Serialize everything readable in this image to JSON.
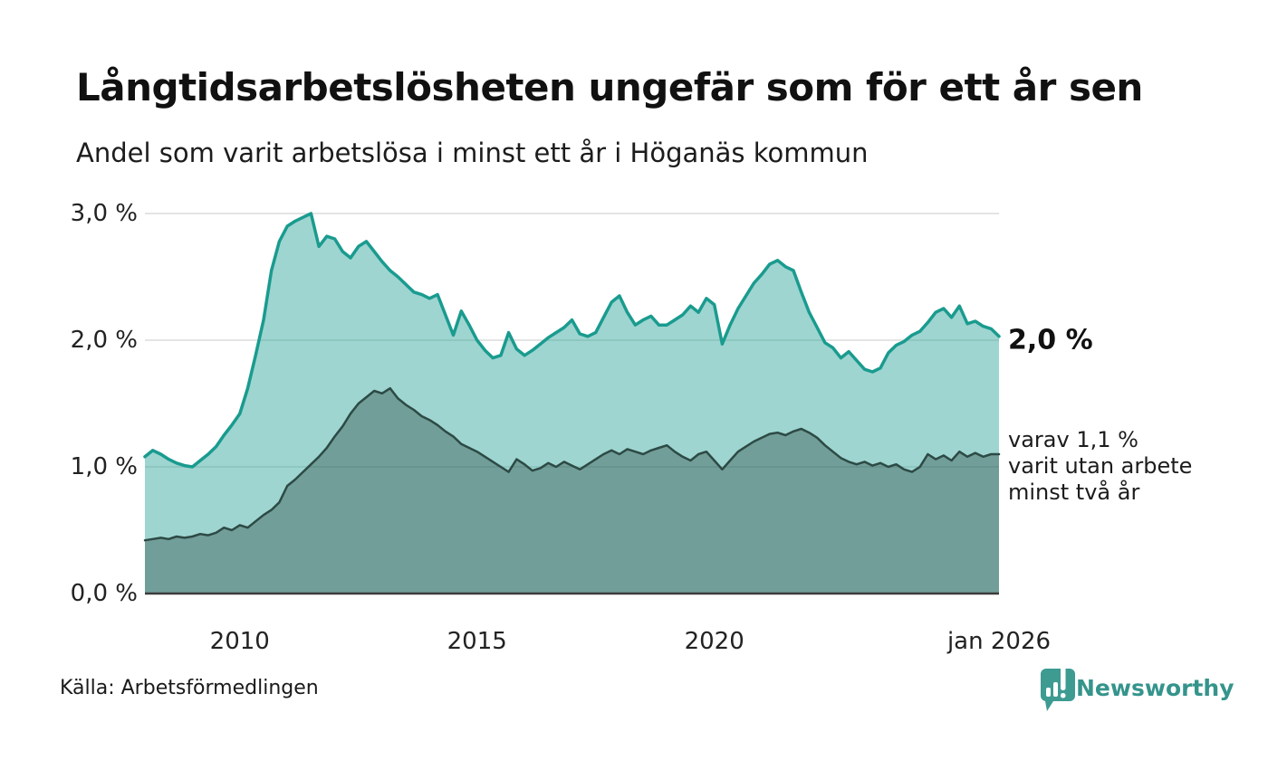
{
  "header": {
    "title": "Långtidsarbetslösheten ungefär som för ett år sen",
    "subtitle": "Andel som varit arbetslösa i minst ett år i Höganäs kommun"
  },
  "chart_data": {
    "type": "area",
    "title": "Långtidsarbetslösheten ungefär som för ett år sen",
    "subtitle": "Andel som varit arbetslösa i minst ett år i Höganäs kommun",
    "unit": "%",
    "grid": "horizontal",
    "legend_position": "right-annotations",
    "xlim": [
      2008.0,
      2026.0
    ],
    "ylim": [
      0,
      3.0
    ],
    "x_start_year": 2008.0,
    "x_step_months": 2,
    "x_ticks": [
      {
        "value": 2010,
        "label": "2010"
      },
      {
        "value": 2015,
        "label": "2015"
      },
      {
        "value": 2020,
        "label": "2020"
      },
      {
        "value": 2026,
        "label": "jan 2026"
      }
    ],
    "y_ticks": [
      {
        "value": 0,
        "label": "0,0 %"
      },
      {
        "value": 1,
        "label": "1,0 %"
      },
      {
        "value": 2,
        "label": "2,0 %"
      },
      {
        "value": 3,
        "label": "3,0 %"
      }
    ],
    "series": [
      {
        "name": "Arbetslösa minst ett år",
        "line_color": "#1a9b8f",
        "fill_color": "rgba(24,155,142,0.42)",
        "line_width": 3.5,
        "latest_label": "2,0 %",
        "values": [
          1.08,
          1.13,
          1.1,
          1.06,
          1.03,
          1.01,
          1.0,
          1.05,
          1.1,
          1.16,
          1.25,
          1.33,
          1.42,
          1.62,
          1.88,
          2.16,
          2.55,
          2.78,
          2.9,
          2.94,
          2.97,
          3.0,
          2.74,
          2.82,
          2.8,
          2.7,
          2.65,
          2.74,
          2.78,
          2.7,
          2.62,
          2.55,
          2.5,
          2.44,
          2.38,
          2.36,
          2.33,
          2.36,
          2.2,
          2.04,
          2.23,
          2.12,
          2.0,
          1.92,
          1.86,
          1.88,
          2.06,
          1.93,
          1.88,
          1.92,
          1.97,
          2.02,
          2.06,
          2.1,
          2.16,
          2.05,
          2.03,
          2.06,
          2.18,
          2.3,
          2.35,
          2.22,
          2.12,
          2.16,
          2.19,
          2.12,
          2.12,
          2.16,
          2.2,
          2.27,
          2.22,
          2.33,
          2.28,
          1.97,
          2.12,
          2.25,
          2.35,
          2.45,
          2.52,
          2.6,
          2.63,
          2.58,
          2.55,
          2.38,
          2.22,
          2.1,
          1.98,
          1.94,
          1.86,
          1.91,
          1.84,
          1.77,
          1.75,
          1.78,
          1.9,
          1.96,
          1.99,
          2.04,
          2.07,
          2.14,
          2.22,
          2.25,
          2.18,
          2.27,
          2.13,
          2.15,
          2.11,
          2.09,
          2.03
        ]
      },
      {
        "name": "Varav arbetslösa minst två år",
        "line_color": "#2d4a45",
        "fill_color": "rgba(45,74,69,0.40)",
        "line_width": 2.5,
        "latest_label": "varav 1,1 % varit utan arbete minst två år",
        "values": [
          0.42,
          0.43,
          0.44,
          0.43,
          0.45,
          0.44,
          0.45,
          0.47,
          0.46,
          0.48,
          0.52,
          0.5,
          0.54,
          0.52,
          0.57,
          0.62,
          0.66,
          0.72,
          0.85,
          0.9,
          0.96,
          1.02,
          1.08,
          1.15,
          1.24,
          1.32,
          1.42,
          1.5,
          1.55,
          1.6,
          1.58,
          1.62,
          1.54,
          1.49,
          1.45,
          1.4,
          1.37,
          1.33,
          1.28,
          1.24,
          1.18,
          1.15,
          1.12,
          1.08,
          1.04,
          1.0,
          0.96,
          1.06,
          1.02,
          0.97,
          0.99,
          1.03,
          1.0,
          1.04,
          1.01,
          0.98,
          1.02,
          1.06,
          1.1,
          1.13,
          1.1,
          1.14,
          1.12,
          1.1,
          1.13,
          1.15,
          1.17,
          1.12,
          1.08,
          1.05,
          1.1,
          1.12,
          1.05,
          0.98,
          1.05,
          1.12,
          1.16,
          1.2,
          1.23,
          1.26,
          1.27,
          1.25,
          1.28,
          1.3,
          1.27,
          1.23,
          1.17,
          1.12,
          1.07,
          1.04,
          1.02,
          1.04,
          1.01,
          1.03,
          1.0,
          1.02,
          0.98,
          0.96,
          1.0,
          1.1,
          1.06,
          1.09,
          1.05,
          1.12,
          1.08,
          1.11,
          1.08,
          1.1,
          1.1
        ]
      }
    ],
    "gridline_color": "#dcdcdc",
    "baseline_color": "#3c3c3c"
  },
  "annotations": {
    "latest_total": "2,0 %",
    "latest_sub_line1": "varav 1,1 %",
    "latest_sub_line2": "varit utan arbete",
    "latest_sub_line3": "minst två år"
  },
  "footer": {
    "source": "Källa: Arbetsförmedlingen",
    "brand": "Newsworthy",
    "brand_color": "#35948c",
    "brand_icon_color": "#3d9b92"
  }
}
